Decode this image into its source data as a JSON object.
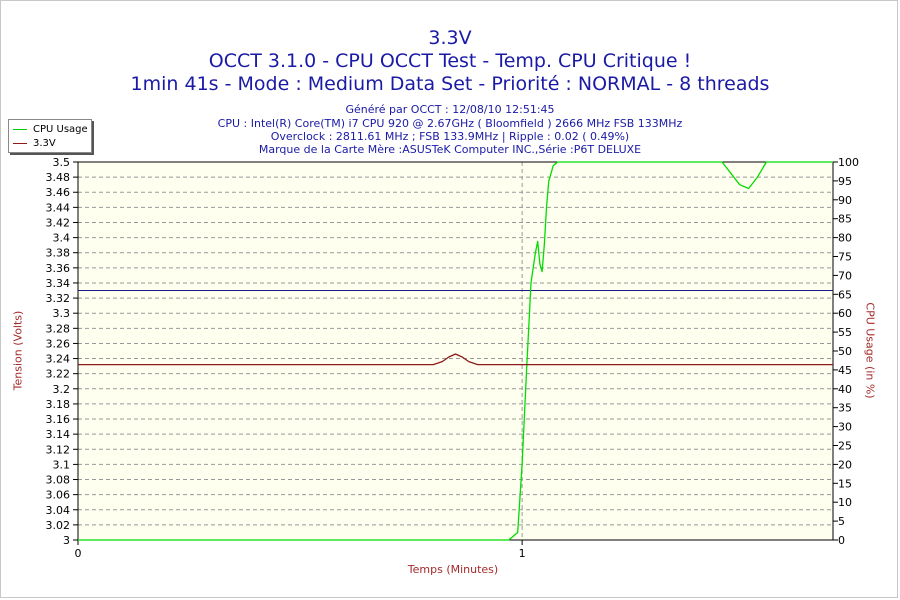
{
  "title": {
    "line1": "3.3V",
    "line2": "OCCT 3.1.0 - CPU OCCT Test - Temp. CPU Critique !",
    "line3": "1min 41s - Mode : Medium Data Set - Priorité : NORMAL - 8 threads"
  },
  "subtitle": [
    "Généré par OCCT : 12/08/10 12:51:45",
    "CPU : Intel(R) Core(TM) i7 CPU 920 @ 2.67GHz ( Bloomfield ) 2666 MHz FSB 133MHz",
    "Overclock : 2811.61 MHz ; FSB 133.9MHz | Ripple : 0.02 ( 0.49%)",
    "Marque de la Carte Mère :ASUSTeK Computer INC.,Série :P6T DELUXE"
  ],
  "legend": [
    {
      "label": "CPU Usage",
      "color": "#00cc00"
    },
    {
      "label": "3.3V",
      "color": "#8b1a1a"
    }
  ],
  "colors": {
    "plot_bg": "#fffff0",
    "grid": "#999999",
    "cpu_line": "#00dd00",
    "volt_line": "#8b1a1a",
    "ref_line": "#1a1a8a",
    "axis_label": "#a52a2a"
  },
  "chart_data": {
    "type": "line",
    "xlabel": "Temps (Minutes)",
    "ylabel_left": "Tension (Volts)",
    "ylabel_right": "CPU Usage (in %)",
    "xlim": [
      0,
      1.7
    ],
    "x_ticks": [
      0,
      1
    ],
    "ylim_left": [
      3.0,
      3.5
    ],
    "ylim_right": [
      0,
      100
    ],
    "y_ticks_left": [
      "3",
      "3.02",
      "3.04",
      "3.06",
      "3.08",
      "3.1",
      "3.12",
      "3.14",
      "3.16",
      "3.18",
      "3.2",
      "3.22",
      "3.24",
      "3.26",
      "3.28",
      "3.3",
      "3.32",
      "3.34",
      "3.36",
      "3.38",
      "3.4",
      "3.42",
      "3.44",
      "3.46",
      "3.48",
      "3.5"
    ],
    "y_ticks_right": [
      "0",
      "5",
      "10",
      "15",
      "20",
      "25",
      "30",
      "35",
      "40",
      "45",
      "50",
      "55",
      "60",
      "65",
      "70",
      "75",
      "80",
      "85",
      "90",
      "95",
      "100"
    ],
    "grid": true,
    "legend_position": "top-left",
    "reference_line_left": 3.33,
    "series": [
      {
        "name": "CPU Usage",
        "axis": "right",
        "x": [
          0.0,
          0.97,
          0.99,
          1.0,
          1.01,
          1.02,
          1.03,
          1.035,
          1.04,
          1.045,
          1.05,
          1.055,
          1.06,
          1.07,
          1.08,
          1.1,
          1.25,
          1.4,
          1.45,
          1.47,
          1.49,
          1.51,
          1.53,
          1.55,
          1.7
        ],
        "y": [
          0,
          0,
          2,
          20,
          45,
          68,
          76,
          79,
          73,
          71,
          78,
          88,
          95,
          99,
          100,
          100,
          100,
          100,
          100,
          97,
          94,
          93,
          96,
          100,
          100
        ]
      },
      {
        "name": "3.3V",
        "axis": "left",
        "x": [
          0.0,
          0.8,
          0.82,
          0.835,
          0.85,
          0.865,
          0.88,
          0.9,
          1.7
        ],
        "y": [
          3.232,
          3.232,
          3.236,
          3.242,
          3.246,
          3.242,
          3.236,
          3.232,
          3.232
        ]
      }
    ]
  }
}
